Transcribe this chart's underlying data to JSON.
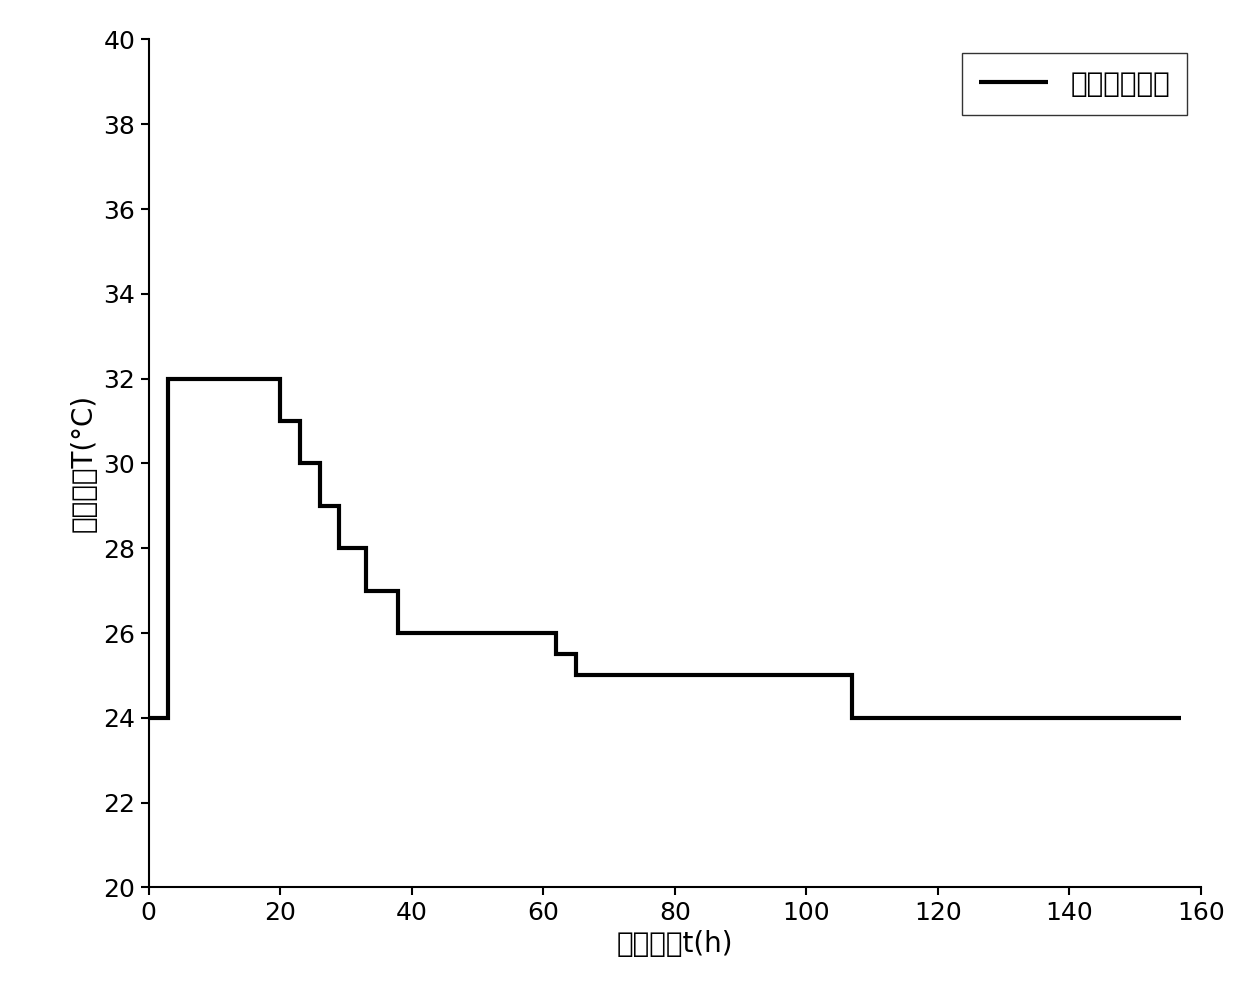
{
  "title": "",
  "xlabel": "发酵时间t(h)",
  "ylabel": "发酵温度T(°C)",
  "xlim": [
    0,
    160
  ],
  "ylim": [
    20,
    40
  ],
  "xticks": [
    0,
    20,
    40,
    60,
    80,
    100,
    120,
    140,
    160
  ],
  "yticks": [
    20,
    22,
    24,
    26,
    28,
    30,
    32,
    34,
    36,
    38,
    40
  ],
  "legend_label": "最优发酵温度",
  "line_color": "#000000",
  "line_width": 3.0,
  "background_color": "#ffffff",
  "step_x": [
    0,
    3,
    3,
    20,
    20,
    23,
    23,
    26,
    26,
    29,
    29,
    33,
    33,
    38,
    38,
    47,
    47,
    62,
    62,
    65,
    65,
    80,
    80,
    107,
    107,
    157
  ],
  "step_y": [
    24,
    24,
    32,
    32,
    31,
    31,
    30,
    30,
    29,
    29,
    28,
    28,
    27,
    27,
    26,
    26,
    26,
    26,
    25.5,
    25.5,
    25,
    25,
    25,
    25,
    24,
    24
  ],
  "font_size_label": 20,
  "font_size_tick": 18,
  "font_size_legend": 20
}
